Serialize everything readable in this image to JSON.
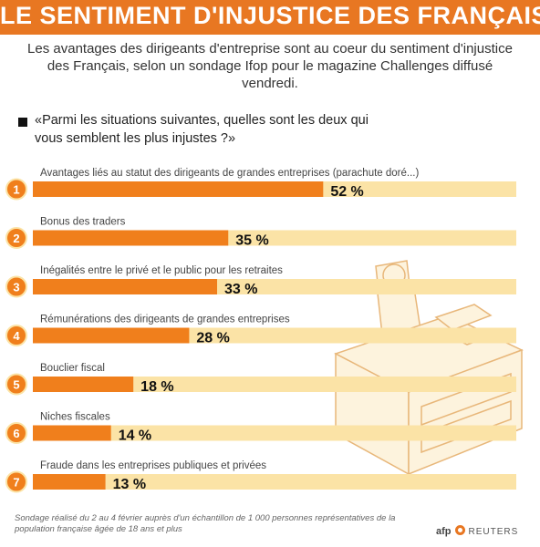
{
  "header": {
    "title": "LE SENTIMENT D'INJUSTICE DES FRANÇAIS",
    "subtitle": "Les avantages des dirigeants d'entreprise sont au coeur du sentiment d'injustice des Français, selon un sondage Ifop pour le magazine Challenges diffusé vendredi."
  },
  "question": "«Parmi les situations suivantes, quelles sont les deux qui vous semblent les plus injustes ?»",
  "chart_data": {
    "type": "bar",
    "orientation": "horizontal",
    "categories": [
      "Avantages liés au statut des dirigeants de grandes entreprises (parachute doré...)",
      "Bonus des traders",
      "Inégalités entre le privé et le public pour les retraites",
      "Rémunérations des dirigeants de grandes entreprises",
      "Bouclier fiscal",
      "Niches fiscales",
      "Fraude dans les entreprises publiques et privées"
    ],
    "ranks": [
      "1",
      "2",
      "3",
      "4",
      "5",
      "6",
      "7"
    ],
    "values": [
      52,
      35,
      33,
      28,
      18,
      14,
      13
    ],
    "value_labels": [
      "52 %",
      "35 %",
      "33 %",
      "28 %",
      "18 %",
      "14 %",
      "13 %"
    ],
    "xlim": [
      0,
      100
    ],
    "colors": {
      "bar": "#f07f1c",
      "track": "#fbe3a6",
      "badge": "#f07f1c"
    }
  },
  "footnote": "Sondage réalisé du 2 au 4 février auprès d'un échantillon de 1 000 personnes représentatives de la population française âgée de 18 ans et plus",
  "logo": {
    "afp": "afp",
    "reuters": "REUTERS"
  }
}
